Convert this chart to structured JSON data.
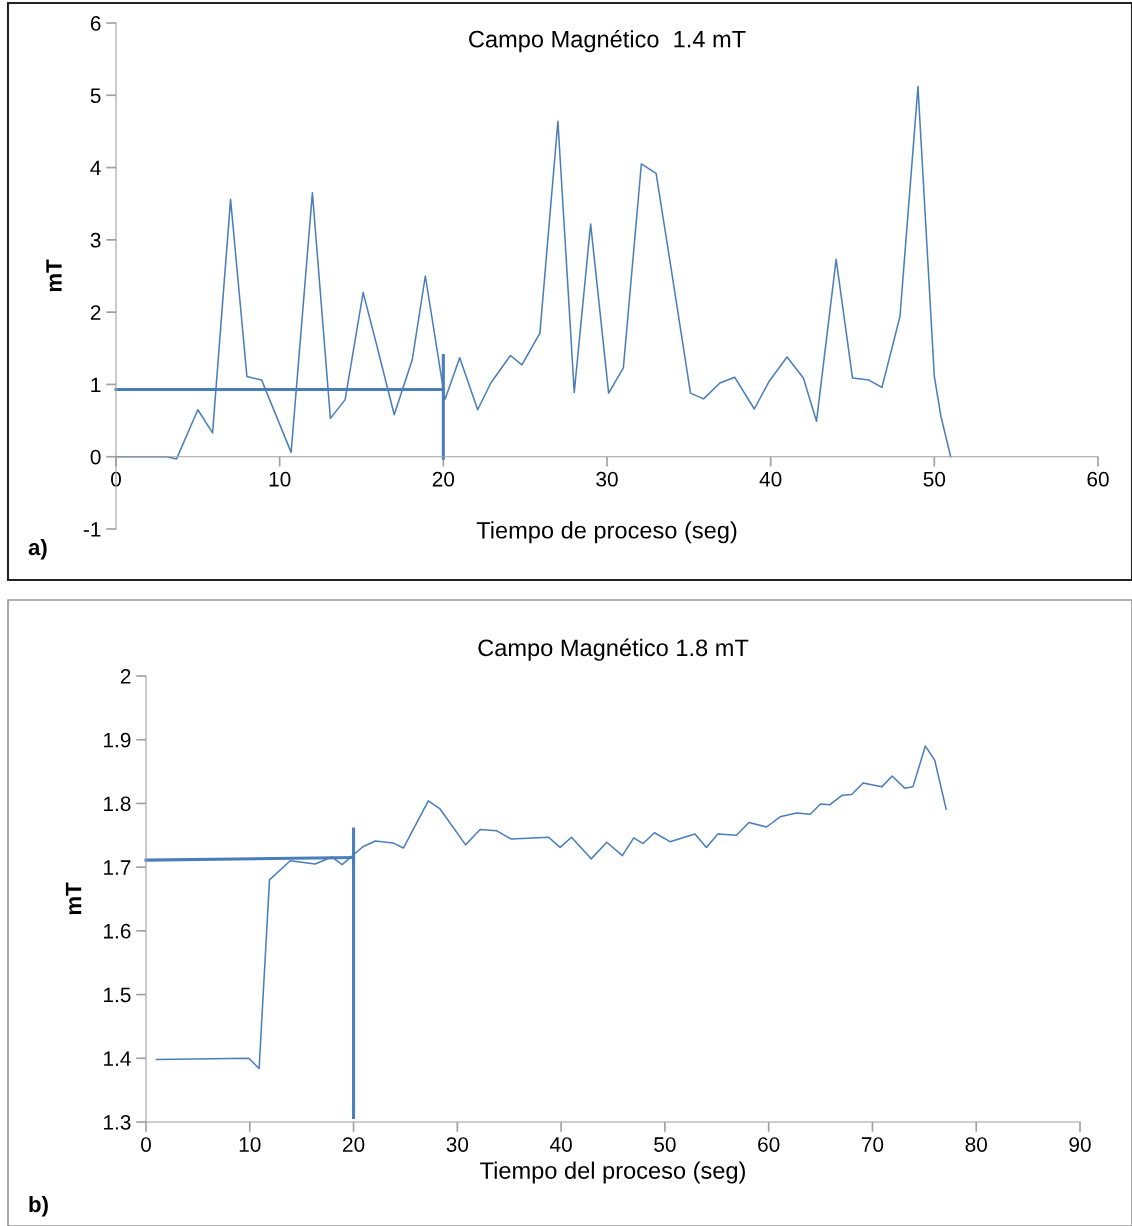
{
  "chart_data": [
    {
      "type": "line",
      "title": "Campo Magnético  1.4 mT",
      "xlabel": "Tiempo de proceso (seg)",
      "ylabel": "mT",
      "annotations": [
        "a)"
      ],
      "xlim": [
        0,
        60
      ],
      "xticks": [
        0,
        10,
        20,
        30,
        40,
        50,
        60
      ],
      "ylim": [
        -1,
        6
      ],
      "yticks": [
        -1,
        0,
        1,
        2,
        3,
        4,
        5,
        6
      ],
      "grid": false,
      "marker": "none",
      "line_style": "solid",
      "series": [
        {
          "color": "#4a7ebb",
          "x": [
            0,
            3.1,
            3.7,
            5.0,
            5.9,
            7.0,
            8.0,
            8.9,
            10.7,
            12.0,
            13.1,
            14.0,
            15.1,
            15.9,
            17.0,
            18.1,
            18.9,
            20.1,
            21.0,
            22.1,
            22.9,
            24.1,
            24.8,
            25.9,
            27.0,
            28.0,
            29.0,
            30.1,
            31.0,
            32.1,
            33.0,
            33.9,
            35.1,
            35.9,
            36.9,
            37.8,
            39.0,
            39.9,
            41.0,
            42.0,
            42.8,
            44.0,
            45.0,
            46.0,
            46.8,
            47.9,
            49.0,
            50.0,
            50.4,
            51.0
          ],
          "values": [
            0,
            0,
            -0.03,
            0.65,
            0.33,
            3.56,
            1.11,
            1.06,
            0.06,
            3.65,
            0.53,
            0.79,
            2.27,
            1.57,
            0.58,
            1.34,
            2.5,
            0.79,
            1.37,
            0.65,
            1.02,
            1.4,
            1.27,
            1.71,
            4.64,
            0.89,
            3.22,
            0.88,
            1.23,
            4.05,
            3.92,
            2.63,
            0.88,
            0.8,
            1.02,
            1.1,
            0.66,
            1.04,
            1.38,
            1.09,
            0.49,
            2.73,
            1.09,
            1.06,
            0.96,
            1.94,
            5.12,
            1.11,
            0.56,
            0
          ]
        },
        {
          "color": "#4a7ebb",
          "x": [
            0,
            20
          ],
          "values": [
            0.93,
            0.93
          ]
        },
        {
          "color": "#4a7ebb",
          "x": [
            20,
            20
          ],
          "values": [
            1.4,
            -0.02
          ]
        }
      ]
    },
    {
      "type": "line",
      "title": "Campo Magnético 1.8 mT",
      "xlabel": "Tiempo del proceso (seg)",
      "ylabel": "mT",
      "annotations": [
        "b)"
      ],
      "xlim": [
        0,
        90
      ],
      "xticks": [
        0,
        10,
        20,
        30,
        40,
        50,
        60,
        70,
        80,
        90
      ],
      "ylim": [
        1.3,
        2
      ],
      "yticks": [
        1.3,
        1.4,
        1.5,
        1.6,
        1.7,
        1.8,
        1.9,
        2
      ],
      "grid": false,
      "marker": "none",
      "line_style": "solid",
      "series": [
        {
          "color": "#4a7ebb",
          "x": [
            1,
            9.9,
            10.9,
            11.9,
            13.9,
            16.3,
            17.9,
            18.9,
            20.9,
            22.1,
            23.8,
            24.8,
            27.2,
            28.3,
            30.8,
            32.2,
            33.8,
            35.2,
            38.8,
            39.9,
            41.0,
            42.9,
            44.4,
            45.9,
            47.0,
            47.9,
            49.0,
            50.5,
            52.9,
            54.0,
            55.1,
            56.9,
            58.1,
            59.8,
            61.1,
            62.7,
            64.0,
            65.0,
            65.9,
            67.1,
            68.0,
            69.1,
            70.9,
            71.9,
            73.1,
            73.9,
            75.1,
            76.0,
            77.1
          ],
          "values": [
            1.398,
            1.4,
            1.384,
            1.68,
            1.71,
            1.705,
            1.716,
            1.704,
            1.732,
            1.741,
            1.738,
            1.73,
            1.804,
            1.792,
            1.735,
            1.759,
            1.757,
            1.744,
            1.747,
            1.731,
            1.747,
            1.713,
            1.739,
            1.718,
            1.746,
            1.737,
            1.754,
            1.74,
            1.752,
            1.731,
            1.752,
            1.75,
            1.77,
            1.763,
            1.779,
            1.785,
            1.783,
            1.799,
            1.798,
            1.813,
            1.814,
            1.832,
            1.826,
            1.843,
            1.824,
            1.826,
            1.89,
            1.868,
            1.791
          ]
        },
        {
          "color": "#4a7ebb",
          "x": [
            0,
            20
          ],
          "values": [
            1.711,
            1.715
          ]
        },
        {
          "color": "#4a7ebb",
          "x": [
            20,
            20
          ],
          "values": [
            1.76,
            1.307
          ]
        }
      ]
    }
  ]
}
